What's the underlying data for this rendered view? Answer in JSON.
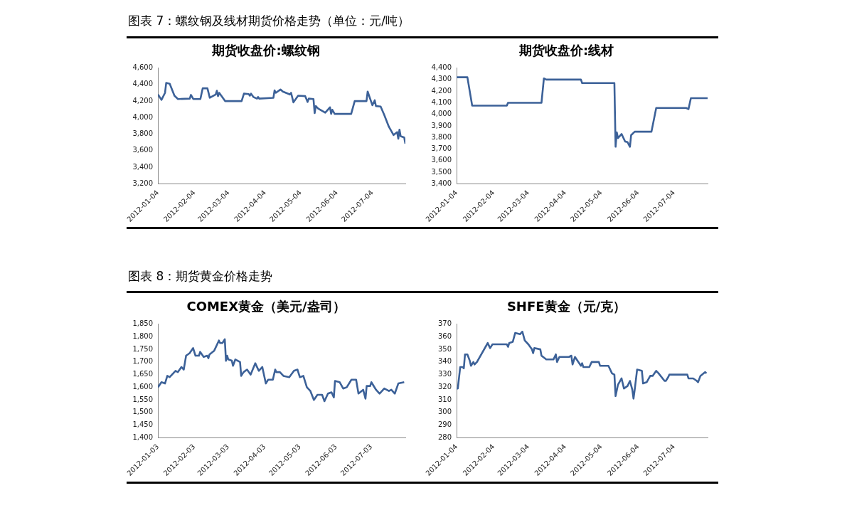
{
  "chart_data": [
    {
      "type": "other",
      "title": "图表 7：螺纹钢及线材期货价格走势（单位：元/吨）"
    },
    {
      "type": "line",
      "title": "期货收盘价:螺纹钢",
      "color": "#3c6198",
      "x": [
        "2012-01-04",
        "2012-01-07",
        "2012-01-10",
        "2012-01-11",
        "2012-01-14",
        "2012-01-18",
        "2012-01-21",
        "2012-01-31",
        "2012-02-01",
        "2012-02-03",
        "2012-02-09",
        "2012-02-11",
        "2012-02-15",
        "2012-02-17",
        "2012-02-22",
        "2012-02-23",
        "2012-02-24",
        "2012-02-25",
        "2012-03-01",
        "2012-03-15",
        "2012-03-17",
        "2012-03-21",
        "2012-03-22",
        "2012-03-23",
        "2012-03-25",
        "2012-03-28",
        "2012-03-29",
        "2012-03-30",
        "2012-04-11",
        "2012-04-12",
        "2012-04-13",
        "2012-04-17",
        "2012-04-19",
        "2012-04-25",
        "2012-04-26",
        "2012-04-28",
        "2012-05-02",
        "2012-05-08",
        "2012-05-10",
        "2012-05-11",
        "2012-05-15",
        "2012-05-16",
        "2012-05-17",
        "2012-05-19",
        "2012-05-25",
        "2012-05-29",
        "2012-05-30",
        "2012-05-31",
        "2012-06-02",
        "2012-06-16",
        "2012-06-19",
        "2012-06-29",
        "2012-06-30",
        "2012-07-04",
        "2012-07-06",
        "2012-07-07",
        "2012-07-11",
        "2012-07-14",
        "2012-07-18",
        "2012-07-22",
        "2012-07-25",
        "2012-07-26",
        "2012-07-27",
        "2012-07-28",
        "2012-07-31",
        "2012-08-01"
      ],
      "values": [
        4280,
        4215,
        4300,
        4420,
        4410,
        4265,
        4225,
        4230,
        4275,
        4225,
        4225,
        4355,
        4355,
        4240,
        4280,
        4325,
        4260,
        4300,
        4200,
        4200,
        4290,
        4285,
        4265,
        4290,
        4250,
        4230,
        4250,
        4230,
        4240,
        4330,
        4300,
        4340,
        4315,
        4280,
        4300,
        4185,
        4265,
        4260,
        4190,
        4230,
        4225,
        4055,
        4140,
        4110,
        4060,
        4125,
        4045,
        4095,
        4045,
        4045,
        4200,
        4200,
        4315,
        4150,
        4210,
        4140,
        4135,
        4035,
        3890,
        3790,
        3825,
        3745,
        3855,
        3775,
        3760,
        3685
      ],
      "xlim": [
        "2012-01-04",
        "2012-08-01"
      ],
      "xticks": [
        "2012-01-04",
        "2012-02-04",
        "2012-03-04",
        "2012-04-04",
        "2012-05-04",
        "2012-06-04",
        "2012-07-04"
      ],
      "ylim": [
        3200,
        4600
      ],
      "yticks": [
        {
          "value": 3200,
          "label": "3,200"
        },
        {
          "value": 3400,
          "label": "3,400"
        },
        {
          "value": 3600,
          "label": "3,600"
        },
        {
          "value": 3800,
          "label": "3,800"
        },
        {
          "value": 4000,
          "label": "4,000"
        },
        {
          "value": 4200,
          "label": "4,200"
        },
        {
          "value": 4400,
          "label": "4,400"
        },
        {
          "value": 4600,
          "label": "4,600"
        }
      ]
    },
    {
      "type": "line",
      "title": "期货收盘价:线材",
      "color": "#3c6198",
      "x": [
        "2012-01-04",
        "2012-01-13",
        "2012-01-17",
        "2012-02-15",
        "2012-02-16",
        "2012-03-15",
        "2012-03-17",
        "2012-03-19",
        "2012-04-17",
        "2012-04-18",
        "2012-05-15",
        "2012-05-16",
        "2012-05-17",
        "2012-05-18",
        "2012-05-21",
        "2012-05-24",
        "2012-05-26",
        "2012-05-28",
        "2012-05-29",
        "2012-06-01",
        "2012-06-15",
        "2012-06-19",
        "2012-07-14",
        "2012-07-16",
        "2012-07-18",
        "2012-08-01"
      ],
      "values": [
        4320,
        4320,
        4075,
        4075,
        4100,
        4100,
        4310,
        4300,
        4300,
        4270,
        4270,
        3720,
        3845,
        3795,
        3830,
        3765,
        3760,
        3720,
        3820,
        3850,
        3850,
        4055,
        4055,
        4045,
        4140,
        4140
      ],
      "xlim": [
        "2012-01-04",
        "2012-08-01"
      ],
      "xticks": [
        "2012-01-04",
        "2012-02-04",
        "2012-03-04",
        "2012-04-04",
        "2012-05-04",
        "2012-06-04",
        "2012-07-04"
      ],
      "ylim": [
        3400,
        4400
      ],
      "yticks": [
        {
          "value": 3400,
          "label": "3,400"
        },
        {
          "value": 3500,
          "label": "3,500"
        },
        {
          "value": 3600,
          "label": "3,600"
        },
        {
          "value": 3700,
          "label": "3,700"
        },
        {
          "value": 3800,
          "label": "3,800"
        },
        {
          "value": 3900,
          "label": "3,900"
        },
        {
          "value": 4000,
          "label": "4,000"
        },
        {
          "value": 4100,
          "label": "4,100"
        },
        {
          "value": 4200,
          "label": "4,200"
        },
        {
          "value": 4300,
          "label": "4,300"
        },
        {
          "value": 4400,
          "label": "4,400"
        }
      ]
    },
    {
      "type": "other",
      "title": "图表 8：期货黄金价格走势"
    },
    {
      "type": "line",
      "title": "COMEX黄金（美元/盎司）",
      "color": "#3c6198",
      "x": [
        "2012-01-03",
        "2012-01-06",
        "2012-01-09",
        "2012-01-11",
        "2012-01-13",
        "2012-01-18",
        "2012-01-20",
        "2012-01-23",
        "2012-01-25",
        "2012-01-27",
        "2012-01-30",
        "2012-02-02",
        "2012-02-04",
        "2012-02-07",
        "2012-02-08",
        "2012-02-11",
        "2012-02-14",
        "2012-02-15",
        "2012-02-16",
        "2012-02-20",
        "2012-02-24",
        "2012-02-25",
        "2012-02-27",
        "2012-02-29",
        "2012-03-01",
        "2012-03-02",
        "2012-03-03",
        "2012-03-06",
        "2012-03-07",
        "2012-03-09",
        "2012-03-13",
        "2012-03-14",
        "2012-03-16",
        "2012-03-19",
        "2012-03-22",
        "2012-03-26",
        "2012-03-29",
        "2012-04-01",
        "2012-04-04",
        "2012-04-06",
        "2012-04-10",
        "2012-04-12",
        "2012-04-13",
        "2012-04-16",
        "2012-04-19",
        "2012-04-24",
        "2012-04-28",
        "2012-05-01",
        "2012-05-03",
        "2012-05-06",
        "2012-05-09",
        "2012-05-12",
        "2012-05-15",
        "2012-05-18",
        "2012-05-22",
        "2012-05-24",
        "2012-05-27",
        "2012-05-30",
        "2012-06-01",
        "2012-06-02",
        "2012-06-06",
        "2012-06-09",
        "2012-06-12",
        "2012-06-16",
        "2012-06-20",
        "2012-06-22",
        "2012-06-26",
        "2012-06-28",
        "2012-06-29",
        "2012-07-02",
        "2012-07-03",
        "2012-07-07",
        "2012-07-10",
        "2012-07-14",
        "2012-07-18",
        "2012-07-20",
        "2012-07-23",
        "2012-07-26",
        "2012-07-31"
      ],
      "values": [
        1600,
        1620,
        1615,
        1645,
        1640,
        1665,
        1660,
        1680,
        1670,
        1725,
        1735,
        1755,
        1725,
        1725,
        1740,
        1720,
        1725,
        1715,
        1730,
        1745,
        1785,
        1775,
        1775,
        1790,
        1705,
        1725,
        1710,
        1705,
        1685,
        1710,
        1700,
        1645,
        1660,
        1670,
        1650,
        1695,
        1665,
        1680,
        1615,
        1630,
        1630,
        1670,
        1660,
        1660,
        1645,
        1640,
        1665,
        1670,
        1640,
        1645,
        1600,
        1585,
        1550,
        1570,
        1570,
        1545,
        1575,
        1580,
        1560,
        1625,
        1620,
        1595,
        1600,
        1630,
        1630,
        1575,
        1590,
        1555,
        1605,
        1605,
        1620,
        1590,
        1575,
        1595,
        1585,
        1590,
        1575,
        1615,
        1620
      ],
      "xlim": [
        "2012-01-03",
        "2012-08-01"
      ],
      "xticks": [
        "2012-01-03",
        "2012-02-03",
        "2012-03-03",
        "2012-04-03",
        "2012-05-03",
        "2012-06-03",
        "2012-07-03"
      ],
      "ylim": [
        1400,
        1850
      ],
      "yticks": [
        {
          "value": 1400,
          "label": "1,400"
        },
        {
          "value": 1450,
          "label": "1,450"
        },
        {
          "value": 1500,
          "label": "1,500"
        },
        {
          "value": 1550,
          "label": "1,550"
        },
        {
          "value": 1600,
          "label": "1,600"
        },
        {
          "value": 1650,
          "label": "1,650"
        },
        {
          "value": 1700,
          "label": "1,700"
        },
        {
          "value": 1750,
          "label": "1,750"
        },
        {
          "value": 1800,
          "label": "1,800"
        },
        {
          "value": 1850,
          "label": "1,850"
        }
      ]
    },
    {
      "type": "line",
      "title": "SHFE黄金（元/克）",
      "color": "#3c6198",
      "x": [
        "2012-01-04",
        "2012-01-05",
        "2012-01-07",
        "2012-01-09",
        "2012-01-10",
        "2012-01-11",
        "2012-01-13",
        "2012-01-15",
        "2012-01-16",
        "2012-01-18",
        "2012-01-19",
        "2012-01-21",
        "2012-01-30",
        "2012-02-01",
        "2012-02-03",
        "2012-02-15",
        "2012-02-16",
        "2012-02-17",
        "2012-02-20",
        "2012-02-22",
        "2012-02-26",
        "2012-02-28",
        "2012-03-01",
        "2012-03-04",
        "2012-03-07",
        "2012-03-08",
        "2012-03-09",
        "2012-03-14",
        "2012-03-15",
        "2012-03-19",
        "2012-03-25",
        "2012-03-27",
        "2012-03-28",
        "2012-03-30",
        "2012-04-07",
        "2012-04-09",
        "2012-04-10",
        "2012-04-12",
        "2012-04-17",
        "2012-04-18",
        "2012-04-19",
        "2012-04-24",
        "2012-04-26",
        "2012-05-02",
        "2012-05-03",
        "2012-05-10",
        "2012-05-13",
        "2012-05-15",
        "2012-05-16",
        "2012-05-18",
        "2012-05-21",
        "2012-05-23",
        "2012-05-26",
        "2012-05-28",
        "2012-05-30",
        "2012-05-31",
        "2012-06-01",
        "2012-06-03",
        "2012-06-07",
        "2012-06-08",
        "2012-06-11",
        "2012-06-14",
        "2012-06-16",
        "2012-06-19",
        "2012-06-21",
        "2012-06-26",
        "2012-06-27",
        "2012-06-29",
        "2012-06-30",
        "2012-07-15",
        "2012-07-16",
        "2012-07-20",
        "2012-07-23",
        "2012-07-24",
        "2012-07-26",
        "2012-07-30",
        "2012-07-31"
      ],
      "values": [
        319,
        319,
        336,
        336,
        335,
        346,
        346,
        341,
        337,
        340,
        338,
        340,
        355,
        351,
        354,
        354,
        352,
        355,
        356,
        363,
        362,
        364,
        357,
        354,
        350,
        347,
        351,
        350,
        345,
        342,
        342,
        346,
        340,
        344,
        344,
        345,
        338,
        344,
        337,
        339,
        336,
        336,
        340,
        340,
        337,
        337,
        331,
        330,
        313,
        322,
        327,
        319,
        321,
        325,
        318,
        311,
        318,
        334,
        333,
        323,
        324,
        329,
        329,
        333,
        331,
        325,
        325,
        328,
        330,
        330,
        327,
        327,
        325,
        324,
        329,
        332,
        331
      ],
      "xlim": [
        "2012-01-04",
        "2012-08-01"
      ],
      "xticks": [
        "2012-01-04",
        "2012-02-04",
        "2012-03-04",
        "2012-04-04",
        "2012-05-04",
        "2012-06-04",
        "2012-07-04"
      ],
      "ylim": [
        280,
        370
      ],
      "yticks": [
        280,
        290,
        300,
        310,
        320,
        330,
        340,
        350,
        360,
        370
      ]
    }
  ]
}
